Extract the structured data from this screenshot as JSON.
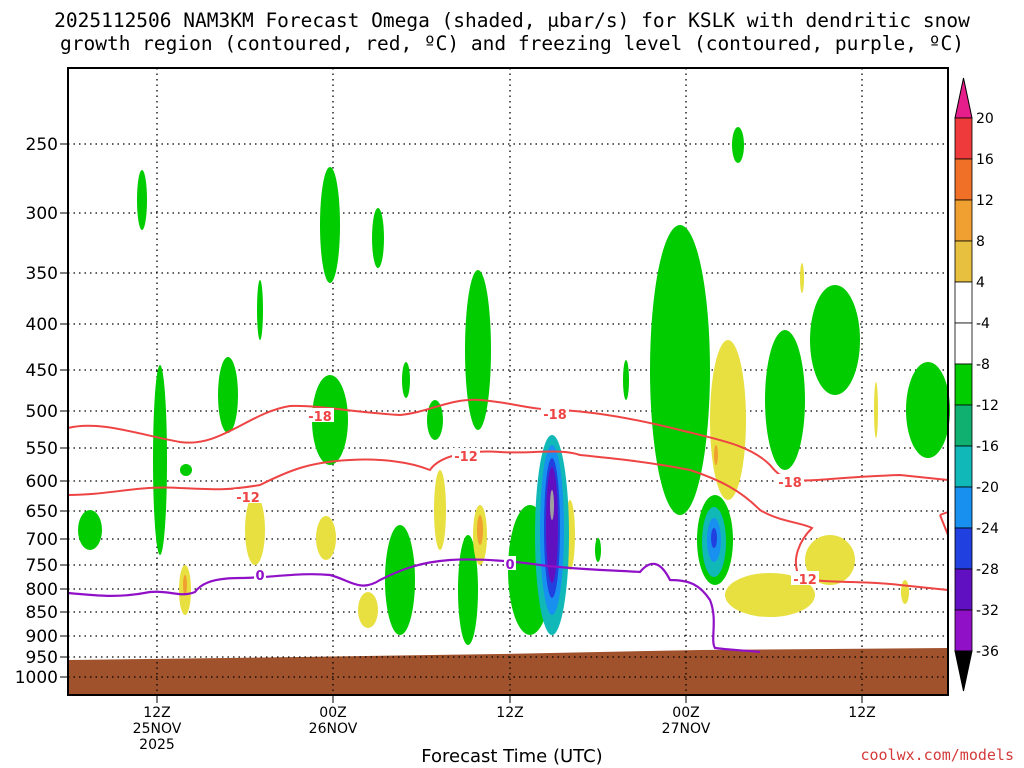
{
  "chart_data": {
    "type": "heatmap",
    "title_line1": "2025112506 NAM3KM Forecast Omega (shaded, μbar/s) for KSLK with dendritic snow",
    "title_line2": "growth region (contoured, red, ºC) and freezing level (contoured, purple, ºC)",
    "xlabel": "Forecast Time (UTC)",
    "ylabel": "",
    "y_ticks": [
      "250",
      "300",
      "350",
      "400",
      "450",
      "500",
      "550",
      "600",
      "650",
      "700",
      "750",
      "800",
      "850",
      "900",
      "950",
      "1000"
    ],
    "x_ticks": [
      {
        "line1": "12Z",
        "line2": "25NOV",
        "line3": "2025"
      },
      {
        "line1": "00Z",
        "line2": "26NOV",
        "line3": ""
      },
      {
        "line1": "12Z",
        "line2": "",
        "line3": ""
      },
      {
        "line1": "00Z",
        "line2": "27NOV",
        "line3": ""
      },
      {
        "line1": "12Z",
        "line2": "",
        "line3": ""
      }
    ],
    "colorbar": {
      "labels": [
        "20",
        "16",
        "12",
        "8",
        "4",
        "-4",
        "-8",
        "-12",
        "-16",
        "-20",
        "-24",
        "-28",
        "-32",
        "-36"
      ],
      "colors": [
        "#e61e8c",
        "#ee3a3a",
        "#f07028",
        "#f0a030",
        "#e8c040",
        "#e8e040",
        "#ffffff",
        "#00cc00",
        "#10b070",
        "#10b8b8",
        "#1890f0",
        "#2040e0",
        "#6010c0",
        "#9010c8",
        "#a0a0a0",
        "#000000"
      ]
    },
    "contours": {
      "red_labels": [
        "-18",
        "-18",
        "-12",
        "-12",
        "-18",
        "-12"
      ],
      "freezing_labels": [
        "0",
        "0"
      ]
    },
    "credit": "coolwx.com/models"
  }
}
